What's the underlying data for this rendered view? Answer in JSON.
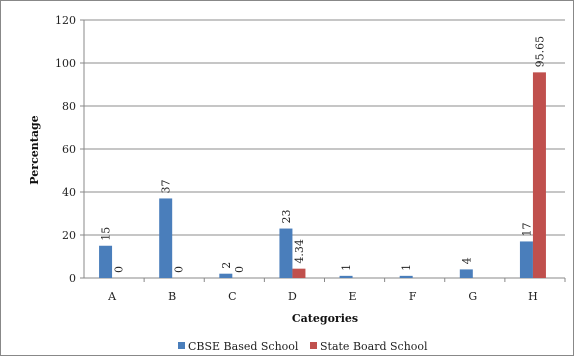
{
  "chart_data": {
    "type": "bar",
    "title": "",
    "xlabel": "Categories",
    "ylabel": "Percentage",
    "ylim": [
      0,
      120
    ],
    "yticks": [
      0,
      20,
      40,
      60,
      80,
      100,
      120
    ],
    "grid": true,
    "legend_position": "bottom",
    "categories": [
      "A",
      "B",
      "C",
      "D",
      "E",
      "F",
      "G",
      "H"
    ],
    "series": [
      {
        "name": "CBSE Based School",
        "color": "#4a7ebb",
        "values": [
          15,
          37,
          2,
          23,
          1,
          1,
          4,
          17
        ],
        "labels": [
          "15",
          "37",
          "2",
          "23",
          "1",
          "1",
          "4",
          "17"
        ]
      },
      {
        "name": "State Board School",
        "color": "#c0504d",
        "values": [
          0,
          0,
          0,
          4.34,
          null,
          null,
          null,
          95.65
        ],
        "labels": [
          "0",
          "0",
          "0",
          "4.34",
          "",
          "",
          "",
          "95.65"
        ]
      }
    ]
  }
}
